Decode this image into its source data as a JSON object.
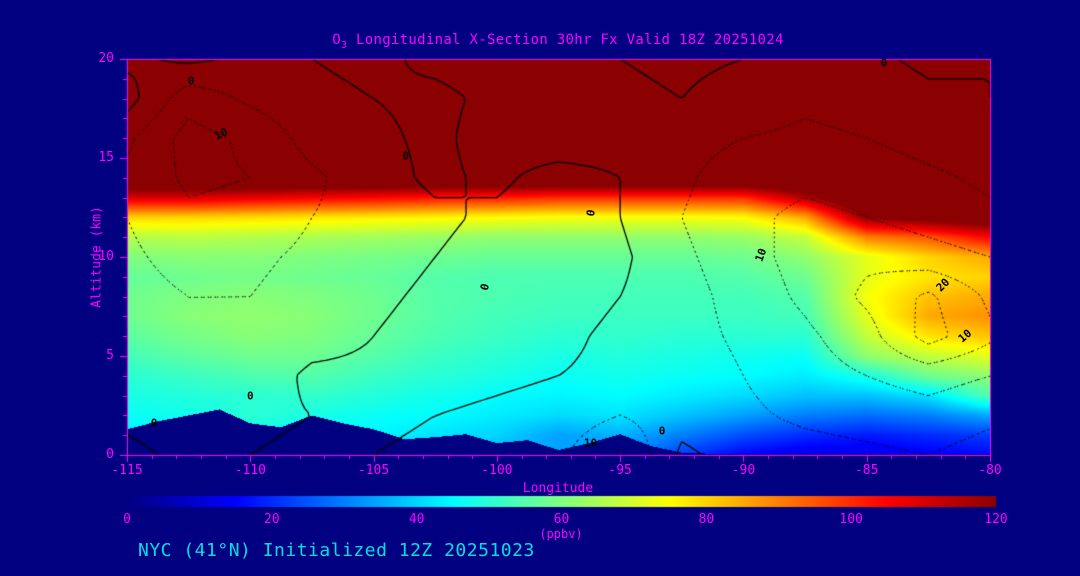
{
  "colors": {
    "bg": "#000080",
    "axis": "#ff00ff",
    "contour": "#000000",
    "footer_text": "#00e0e0"
  },
  "figure": {
    "title_parts": {
      "pre": "O",
      "sub": "3",
      "rest": " Longitudinal X-Section 30hr  Fx Valid 18Z 20251024"
    },
    "footer": "NYC (41°N) Initialized 12Z 20251023"
  },
  "chart_data": {
    "type": "heatmap",
    "subtype": "filled-contour-cross-section",
    "title": "O3 Longitudinal X-Section 30hr  Fx Valid 18Z 20251024",
    "xlabel": "Longitude",
    "ylabel": "Altitude (km)",
    "colorbar_label": "(ppbv)",
    "xlim": [
      -115,
      -80
    ],
    "ylim": [
      0,
      20
    ],
    "clim": [
      0,
      120
    ],
    "xticks": [
      -115,
      -110,
      -105,
      -100,
      -95,
      -90,
      -85,
      -80
    ],
    "yticks": [
      0,
      5,
      10,
      15,
      20
    ],
    "colorbar_ticks": [
      0,
      20,
      40,
      60,
      80,
      100,
      120
    ],
    "x": [
      -115,
      -112.5,
      -110,
      -107.5,
      -105,
      -102.5,
      -100,
      -97.5,
      -95,
      -92.5,
      -90,
      -87.5,
      -85,
      -82.5,
      -80
    ],
    "y": [
      0,
      1,
      2,
      3,
      4,
      5,
      6,
      7,
      8,
      9,
      10,
      11,
      12,
      13,
      14,
      15,
      16,
      17,
      18,
      19,
      20
    ],
    "values": [
      [
        40,
        42,
        44,
        42,
        40,
        38,
        36,
        34,
        33,
        22,
        15,
        12,
        12,
        14,
        16
      ],
      [
        43,
        45,
        47,
        46,
        44,
        42,
        40,
        34,
        36,
        30,
        24,
        20,
        18,
        20,
        22
      ],
      [
        46,
        47,
        50,
        48,
        46,
        45,
        43,
        41,
        42,
        38,
        34,
        30,
        28,
        30,
        35
      ],
      [
        48,
        49,
        50,
        51,
        49,
        47,
        45,
        44,
        45,
        43,
        41,
        38,
        38,
        42,
        55
      ],
      [
        50,
        52,
        54,
        55,
        52,
        50,
        48,
        46,
        47,
        46,
        45,
        43,
        48,
        58,
        62
      ],
      [
        53,
        56,
        58,
        58,
        55,
        52,
        50,
        48,
        49,
        48,
        47,
        46,
        62,
        68,
        72
      ],
      [
        56,
        59,
        61,
        60,
        57,
        54,
        52,
        50,
        51,
        50,
        50,
        50,
        68,
        78,
        82
      ],
      [
        58,
        61,
        62,
        61,
        58,
        55,
        53,
        52,
        52,
        52,
        52,
        53,
        72,
        85,
        88
      ],
      [
        58,
        60,
        61,
        60,
        58,
        55,
        54,
        53,
        53,
        53,
        53,
        55,
        74,
        82,
        85
      ],
      [
        57,
        58,
        59,
        58,
        57,
        55,
        54,
        54,
        54,
        54,
        55,
        58,
        72,
        78,
        80
      ],
      [
        60,
        61,
        61,
        60,
        59,
        58,
        57,
        57,
        57,
        57,
        58,
        62,
        72,
        80,
        85
      ],
      [
        66,
        67,
        66,
        65,
        64,
        63,
        62,
        62,
        62,
        62,
        63,
        68,
        90,
        95,
        105
      ],
      [
        80,
        80,
        79,
        78,
        77,
        76,
        75,
        74,
        74,
        74,
        75,
        85,
        120,
        125,
        130
      ],
      [
        110,
        110,
        108,
        106,
        105,
        103,
        102,
        100,
        100,
        100,
        100,
        115,
        135,
        135,
        135
      ],
      [
        135,
        135,
        135,
        135,
        135,
        135,
        135,
        135,
        135,
        135,
        135,
        135,
        135,
        135,
        135
      ],
      [
        135,
        135,
        135,
        135,
        135,
        135,
        135,
        135,
        135,
        135,
        135,
        135,
        135,
        135,
        135
      ],
      [
        135,
        135,
        135,
        135,
        135,
        135,
        135,
        135,
        135,
        135,
        135,
        135,
        135,
        135,
        135
      ],
      [
        135,
        135,
        135,
        135,
        135,
        135,
        135,
        135,
        135,
        135,
        135,
        135,
        135,
        135,
        135
      ],
      [
        135,
        135,
        135,
        135,
        135,
        135,
        135,
        135,
        135,
        135,
        135,
        135,
        135,
        135,
        135
      ],
      [
        135,
        135,
        135,
        135,
        135,
        135,
        135,
        135,
        135,
        135,
        135,
        135,
        135,
        135,
        135
      ],
      [
        135,
        135,
        135,
        135,
        135,
        135,
        135,
        135,
        135,
        135,
        135,
        135,
        135,
        135,
        135
      ]
    ],
    "terrain": {
      "x0": -115,
      "x_step": 1.25,
      "elev": [
        1.3,
        1.7,
        2.0,
        2.3,
        1.6,
        1.4,
        2.0,
        1.6,
        1.3,
        0.8,
        0.9,
        1.05,
        0.6,
        0.75,
        0.25,
        0.6,
        1.05,
        0.45,
        0.12,
        0.06,
        0.05,
        0.04,
        0.04,
        0.04,
        0.04,
        0.04,
        0.04,
        0.04,
        0.04
      ]
    },
    "colormap": [
      {
        "v": 0,
        "c": "#000080"
      },
      {
        "v": 15,
        "c": "#0000ff"
      },
      {
        "v": 45,
        "c": "#00ffff"
      },
      {
        "v": 75,
        "c": "#ffff00"
      },
      {
        "v": 105,
        "c": "#ff0000"
      },
      {
        "v": 120,
        "c": "#8b0000"
      }
    ],
    "overlay_contours": {
      "x": [
        -115,
        -112.5,
        -110,
        -107.5,
        -105,
        -102.5,
        -100,
        -97.5,
        -95,
        -92.5,
        -90,
        -87.5,
        -85,
        -82.5,
        -80
      ],
      "y": [
        0,
        2,
        4,
        6,
        8,
        10,
        12,
        14,
        16,
        18,
        20
      ],
      "values": [
        [
          -1,
          1,
          0,
          -1,
          0,
          1,
          2,
          4,
          11,
          -1,
          2,
          3,
          4,
          5,
          3
        ],
        [
          1,
          2,
          1,
          0,
          -1,
          0,
          1,
          2,
          5,
          2,
          4,
          6,
          7,
          8,
          6
        ],
        [
          1,
          3,
          3,
          -1,
          -1,
          -2,
          -1,
          0,
          1,
          2,
          5,
          8,
          10,
          12,
          10
        ],
        [
          2,
          4,
          4,
          2,
          0,
          -2,
          -2,
          -1,
          1,
          3,
          6,
          9,
          13,
          22,
          16
        ],
        [
          3,
          5,
          5,
          3,
          1,
          -1,
          -3,
          -2,
          0,
          3,
          7,
          11,
          16,
          21,
          14
        ],
        [
          4,
          7,
          6,
          4,
          2,
          0,
          -2,
          -4,
          -1,
          4,
          8,
          12,
          14,
          12,
          10
        ],
        [
          5,
          9,
          8,
          5,
          3,
          1,
          -1,
          -3,
          0,
          5,
          9,
          11,
          10,
          8,
          6
        ],
        [
          6,
          11,
          10,
          6,
          2,
          -1,
          1,
          -2,
          0,
          4,
          8,
          9,
          8,
          6,
          4
        ],
        [
          4,
          12,
          9,
          3,
          1,
          -1,
          2,
          3,
          2,
          3,
          5,
          6,
          5,
          3,
          2
        ],
        [
          -2,
          8,
          4,
          1,
          0,
          -1,
          1,
          2,
          1,
          0,
          2,
          4,
          3,
          1,
          0
        ],
        [
          1,
          -1,
          1,
          0,
          -1,
          1,
          2,
          1,
          0,
          -1,
          0,
          1,
          1,
          -1,
          0
        ]
      ],
      "solid_levels": [
        0
      ],
      "dotted_levels": [
        5,
        10,
        15,
        20
      ],
      "labels": [
        {
          "text": "0",
          "lon": -112.4,
          "alt": 18.9,
          "rot": 0
        },
        {
          "text": "10",
          "lon": -111.2,
          "alt": 16.2,
          "rot": -25
        },
        {
          "text": "0",
          "lon": -103.7,
          "alt": 15.1,
          "rot": 0
        },
        {
          "text": "0",
          "lon": -96.2,
          "alt": 12.2,
          "rot": -80
        },
        {
          "text": "0",
          "lon": -100.5,
          "alt": 8.5,
          "rot": -75
        },
        {
          "text": "10",
          "lon": -89.3,
          "alt": 10.1,
          "rot": -70
        },
        {
          "text": "20",
          "lon": -81.9,
          "alt": 8.6,
          "rot": -45
        },
        {
          "text": "10",
          "lon": -81.0,
          "alt": 6.0,
          "rot": -40
        },
        {
          "text": "0",
          "lon": -84.3,
          "alt": 19.8,
          "rot": 0
        },
        {
          "text": "0",
          "lon": -113.9,
          "alt": 1.6,
          "rot": 0
        },
        {
          "text": "0",
          "lon": -110.0,
          "alt": 3.0,
          "rot": 0
        },
        {
          "text": "10",
          "lon": -96.2,
          "alt": 0.6,
          "rot": 0
        },
        {
          "text": "0",
          "lon": -93.3,
          "alt": 1.2,
          "rot": 0
        }
      ]
    }
  }
}
